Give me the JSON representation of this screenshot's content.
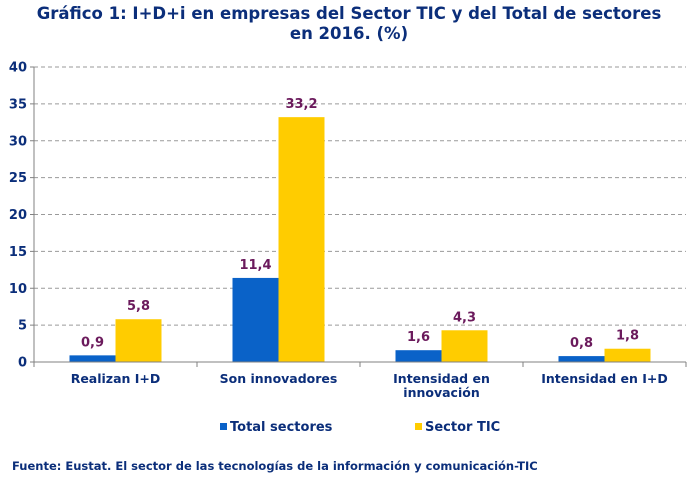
{
  "chart_data": {
    "type": "bar",
    "title_line1": "Gráfico 1: I+D+i  en empresas del Sector TIC y del Total de sectores",
    "title_line2": "en 2016. (%)",
    "categories": [
      [
        "Realizan I+D"
      ],
      [
        "Son innovadores"
      ],
      [
        "Intensidad en",
        "innovación"
      ],
      [
        "Intensidad en I+D"
      ]
    ],
    "series": [
      {
        "name": "Total sectores",
        "color": "#0a62c8",
        "values": [
          0.9,
          11.4,
          1.6,
          0.8
        ],
        "labels": [
          "0,9",
          "11,4",
          "1,6",
          "0,8"
        ]
      },
      {
        "name": "Sector TIC",
        "color": "#ffcc00",
        "values": [
          5.8,
          33.2,
          4.3,
          1.8
        ],
        "labels": [
          "5,8",
          "33,2",
          "4,3",
          "1,8"
        ]
      }
    ],
    "ylim": [
      0,
      40
    ],
    "yticks": [
      0,
      5,
      10,
      15,
      20,
      25,
      30,
      35,
      40
    ],
    "grid": true,
    "legend_position": "bottom",
    "label_color": "#6b1a5c",
    "axis_text_color": "#0b2e7a",
    "source": "Fuente: Eustat. El sector de las tecnologías de la información y comunicación-TIC"
  }
}
